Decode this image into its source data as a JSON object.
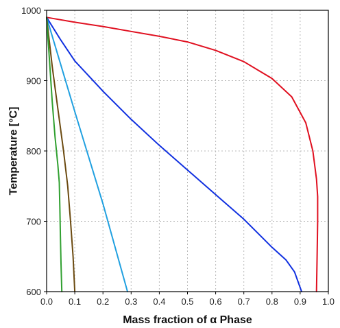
{
  "chart_data": {
    "type": "line",
    "title": "",
    "xlabel": "Mass fraction of α Phase",
    "ylabel": "Temperature [°C]",
    "xlim": [
      0.0,
      1.0
    ],
    "ylim": [
      600,
      1000
    ],
    "x_ticks": [
      "0.0",
      "0.1",
      "0.2",
      "0.3",
      "0.4",
      "0.5",
      "0.6",
      "0.7",
      "0.8",
      "0.9",
      "1.0"
    ],
    "y_ticks": [
      "600",
      "700",
      "800",
      "900",
      "1000"
    ],
    "grid": true,
    "legend": "none",
    "series": [
      {
        "color": "#e01020",
        "points": [
          [
            0.0,
            990
          ],
          [
            0.1,
            983
          ],
          [
            0.2,
            977
          ],
          [
            0.3,
            970
          ],
          [
            0.4,
            963
          ],
          [
            0.5,
            955
          ],
          [
            0.6,
            943
          ],
          [
            0.7,
            927
          ],
          [
            0.8,
            903
          ],
          [
            0.87,
            877
          ],
          [
            0.92,
            840
          ],
          [
            0.945,
            800
          ],
          [
            0.958,
            760
          ],
          [
            0.962,
            735
          ],
          [
            0.962,
            700
          ],
          [
            0.96,
            650
          ],
          [
            0.958,
            600
          ]
        ]
      },
      {
        "color": "#1030e0",
        "points": [
          [
            0.0,
            990
          ],
          [
            0.05,
            958
          ],
          [
            0.1,
            928
          ],
          [
            0.2,
            885
          ],
          [
            0.3,
            845
          ],
          [
            0.4,
            808
          ],
          [
            0.5,
            773
          ],
          [
            0.6,
            738
          ],
          [
            0.7,
            703
          ],
          [
            0.8,
            663
          ],
          [
            0.85,
            645
          ],
          [
            0.88,
            628
          ],
          [
            0.905,
            600
          ]
        ]
      },
      {
        "color": "#20a0e0",
        "points": [
          [
            0.0,
            990
          ],
          [
            0.1,
            856
          ],
          [
            0.2,
            725
          ],
          [
            0.287,
            600
          ]
        ]
      },
      {
        "color": "#6b4a10",
        "points": [
          [
            0.0,
            990
          ],
          [
            0.02,
            920
          ],
          [
            0.04,
            860
          ],
          [
            0.06,
            800
          ],
          [
            0.075,
            750
          ],
          [
            0.085,
            700
          ],
          [
            0.094,
            650
          ],
          [
            0.1,
            600
          ]
        ]
      },
      {
        "color": "#30a030",
        "points": [
          [
            0.0,
            990
          ],
          [
            0.01,
            930
          ],
          [
            0.02,
            870
          ],
          [
            0.03,
            820
          ],
          [
            0.04,
            780
          ],
          [
            0.045,
            755
          ],
          [
            0.047,
            720
          ],
          [
            0.049,
            680
          ],
          [
            0.051,
            640
          ],
          [
            0.054,
            600
          ]
        ]
      }
    ]
  }
}
